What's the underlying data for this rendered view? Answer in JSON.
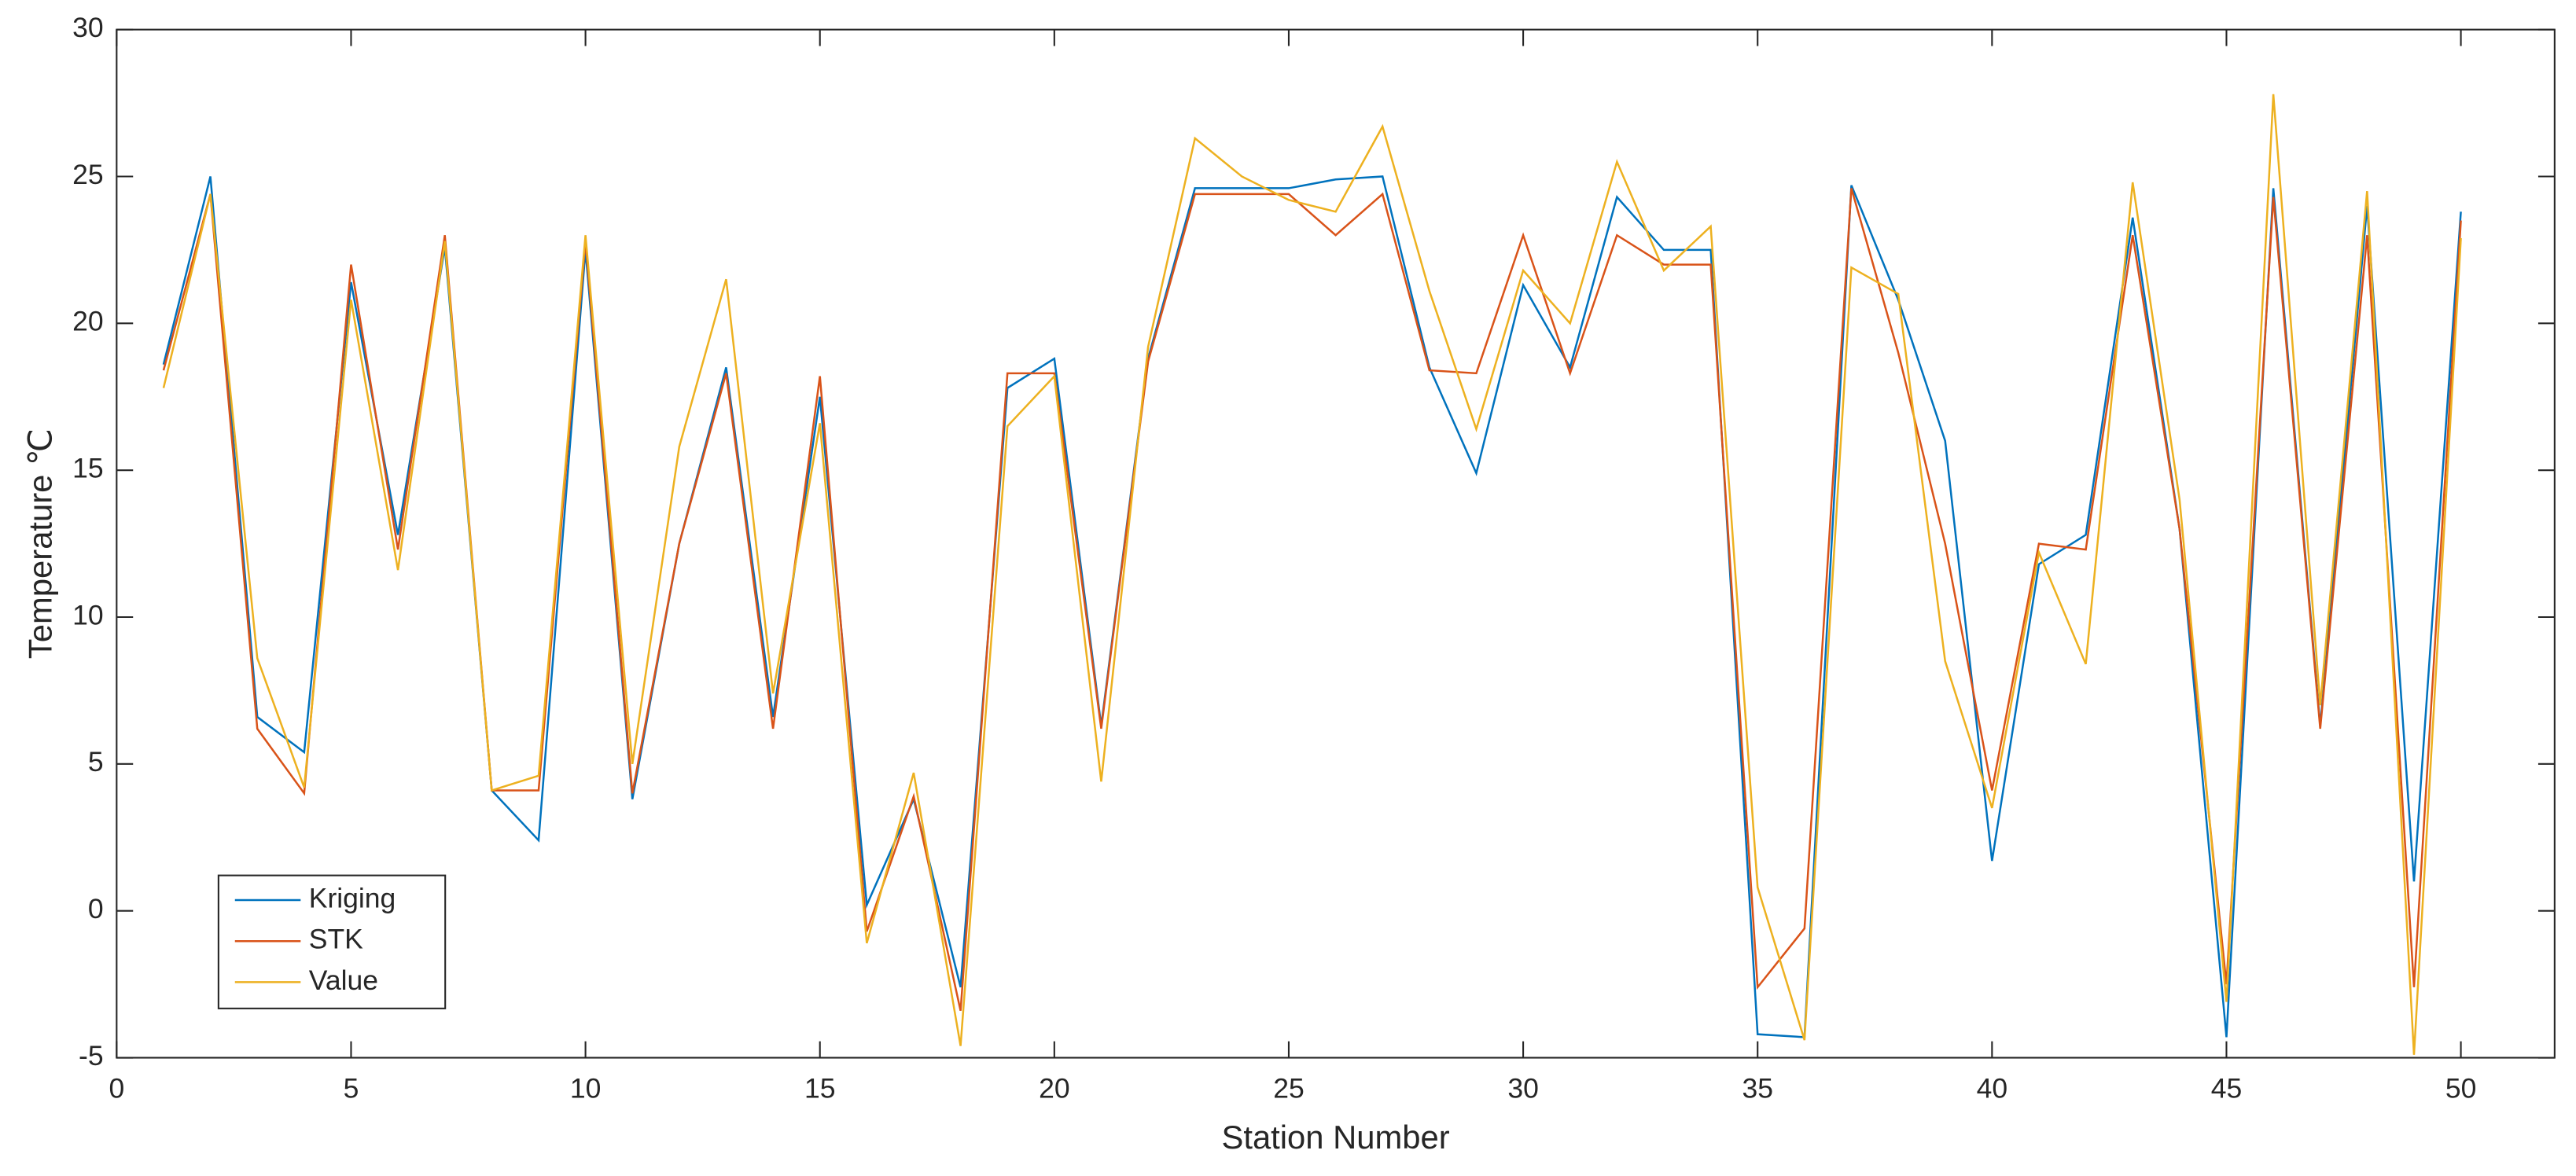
{
  "chart_data": {
    "type": "line",
    "x_label": "Station Number",
    "y_label": "Temperature ℃",
    "x": [
      1,
      2,
      3,
      4,
      5,
      6,
      7,
      8,
      9,
      10,
      11,
      12,
      13,
      14,
      15,
      16,
      17,
      18,
      19,
      20,
      21,
      22,
      23,
      24,
      25,
      26,
      27,
      28,
      29,
      30,
      31,
      32,
      33,
      34,
      35,
      36,
      37,
      38,
      39,
      40,
      41,
      42,
      43,
      44,
      45,
      46,
      47,
      48,
      49,
      50
    ],
    "series": [
      {
        "name": "Kriging",
        "color": "#0072bd",
        "values": [
          18.6,
          25,
          6.6,
          5.4,
          21.4,
          12.8,
          22.6,
          4.1,
          2.4,
          22.5,
          3.8,
          12.5,
          18.5,
          6.6,
          17.5,
          0.2,
          3.8,
          -2.6,
          17.8,
          18.8,
          6.3,
          18.8,
          24.6,
          24.6,
          24.6,
          24.9,
          25,
          18.5,
          14.9,
          21.3,
          18.5,
          24.3,
          22.5,
          22.5,
          -4.2,
          -4.3,
          24.7,
          20.8,
          16,
          1.7,
          11.8,
          12.8,
          23.6,
          13,
          -4.3,
          24.6,
          6.3,
          24,
          1,
          23.8
        ]
      },
      {
        "name": "STK",
        "color": "#d95319",
        "values": [
          18.4,
          24.4,
          6.2,
          4,
          22,
          12.3,
          23,
          4.1,
          4.1,
          22.8,
          4,
          12.5,
          18.3,
          6.2,
          18.2,
          -0.7,
          3.9,
          -3.4,
          18.3,
          18.3,
          6.2,
          18.7,
          24.4,
          24.4,
          24.4,
          23,
          24.4,
          18.4,
          18.3,
          23,
          18.3,
          23,
          22,
          22,
          -2.6,
          -0.6,
          24.6,
          19,
          12.5,
          4.1,
          12.5,
          12.3,
          23,
          13,
          -2.5,
          24.3,
          6.2,
          23,
          -2.6,
          23.5
        ]
      },
      {
        "name": "Value",
        "color": "#edb120",
        "values": [
          17.8,
          24.4,
          8.6,
          4.2,
          20.8,
          11.6,
          22.8,
          4.1,
          4.6,
          23,
          5,
          15.8,
          21.5,
          7.4,
          16.6,
          -1.1,
          4.7,
          -4.6,
          16.5,
          18.2,
          4.4,
          19.2,
          26.3,
          25,
          24.2,
          23.8,
          26.7,
          21.1,
          16.4,
          21.8,
          20,
          25.5,
          21.8,
          23.3,
          0.8,
          -4.4,
          21.9,
          21,
          8.5,
          3.5,
          12.2,
          8.4,
          24.8,
          14,
          -3.1,
          27.8,
          7,
          24.5,
          -4.9,
          22.9
        ]
      }
    ],
    "xlim": [
      0,
      52
    ],
    "xticks": [
      0,
      5,
      10,
      15,
      20,
      25,
      30,
      35,
      40,
      45,
      50
    ],
    "ylim": [
      -5,
      30
    ],
    "yticks": [
      -5,
      0,
      5,
      10,
      15,
      20,
      25,
      30
    ],
    "legend": "lower left"
  }
}
